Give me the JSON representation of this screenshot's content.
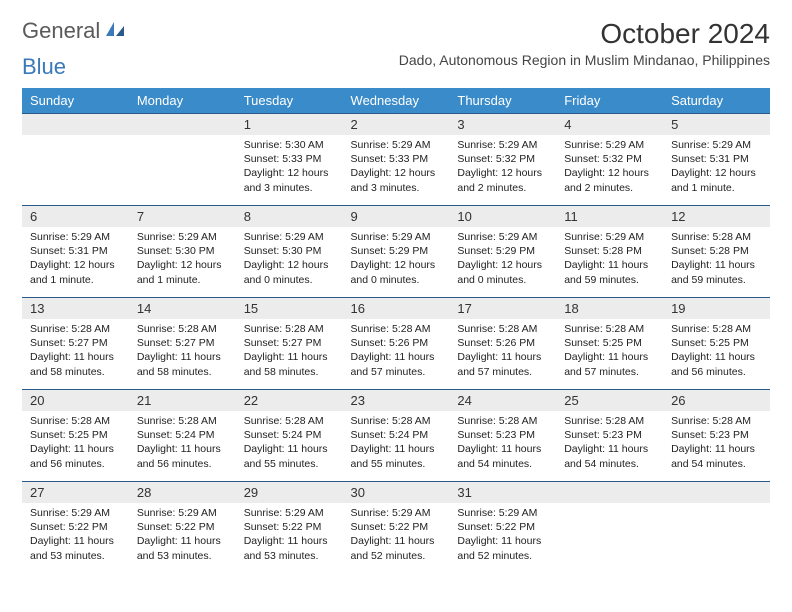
{
  "logo": {
    "text1": "General",
    "text2": "Blue"
  },
  "title": "October 2024",
  "subtitle": "Dado, Autonomous Region in Muslim Mindanao, Philippines",
  "colors": {
    "header_bg": "#3a8bc9",
    "header_text": "#ffffff",
    "daynum_bg": "#ececec",
    "border": "#2a5a8a",
    "logo_gray": "#5a5a5a",
    "logo_blue": "#3a7ab8",
    "text": "#222222",
    "background": "#ffffff"
  },
  "day_headers": [
    "Sunday",
    "Monday",
    "Tuesday",
    "Wednesday",
    "Thursday",
    "Friday",
    "Saturday"
  ],
  "weeks": [
    [
      {
        "num": "",
        "lines": []
      },
      {
        "num": "",
        "lines": []
      },
      {
        "num": "1",
        "lines": [
          "Sunrise: 5:30 AM",
          "Sunset: 5:33 PM",
          "Daylight: 12 hours and 3 minutes."
        ]
      },
      {
        "num": "2",
        "lines": [
          "Sunrise: 5:29 AM",
          "Sunset: 5:33 PM",
          "Daylight: 12 hours and 3 minutes."
        ]
      },
      {
        "num": "3",
        "lines": [
          "Sunrise: 5:29 AM",
          "Sunset: 5:32 PM",
          "Daylight: 12 hours and 2 minutes."
        ]
      },
      {
        "num": "4",
        "lines": [
          "Sunrise: 5:29 AM",
          "Sunset: 5:32 PM",
          "Daylight: 12 hours and 2 minutes."
        ]
      },
      {
        "num": "5",
        "lines": [
          "Sunrise: 5:29 AM",
          "Sunset: 5:31 PM",
          "Daylight: 12 hours and 1 minute."
        ]
      }
    ],
    [
      {
        "num": "6",
        "lines": [
          "Sunrise: 5:29 AM",
          "Sunset: 5:31 PM",
          "Daylight: 12 hours and 1 minute."
        ]
      },
      {
        "num": "7",
        "lines": [
          "Sunrise: 5:29 AM",
          "Sunset: 5:30 PM",
          "Daylight: 12 hours and 1 minute."
        ]
      },
      {
        "num": "8",
        "lines": [
          "Sunrise: 5:29 AM",
          "Sunset: 5:30 PM",
          "Daylight: 12 hours and 0 minutes."
        ]
      },
      {
        "num": "9",
        "lines": [
          "Sunrise: 5:29 AM",
          "Sunset: 5:29 PM",
          "Daylight: 12 hours and 0 minutes."
        ]
      },
      {
        "num": "10",
        "lines": [
          "Sunrise: 5:29 AM",
          "Sunset: 5:29 PM",
          "Daylight: 12 hours and 0 minutes."
        ]
      },
      {
        "num": "11",
        "lines": [
          "Sunrise: 5:29 AM",
          "Sunset: 5:28 PM",
          "Daylight: 11 hours and 59 minutes."
        ]
      },
      {
        "num": "12",
        "lines": [
          "Sunrise: 5:28 AM",
          "Sunset: 5:28 PM",
          "Daylight: 11 hours and 59 minutes."
        ]
      }
    ],
    [
      {
        "num": "13",
        "lines": [
          "Sunrise: 5:28 AM",
          "Sunset: 5:27 PM",
          "Daylight: 11 hours and 58 minutes."
        ]
      },
      {
        "num": "14",
        "lines": [
          "Sunrise: 5:28 AM",
          "Sunset: 5:27 PM",
          "Daylight: 11 hours and 58 minutes."
        ]
      },
      {
        "num": "15",
        "lines": [
          "Sunrise: 5:28 AM",
          "Sunset: 5:27 PM",
          "Daylight: 11 hours and 58 minutes."
        ]
      },
      {
        "num": "16",
        "lines": [
          "Sunrise: 5:28 AM",
          "Sunset: 5:26 PM",
          "Daylight: 11 hours and 57 minutes."
        ]
      },
      {
        "num": "17",
        "lines": [
          "Sunrise: 5:28 AM",
          "Sunset: 5:26 PM",
          "Daylight: 11 hours and 57 minutes."
        ]
      },
      {
        "num": "18",
        "lines": [
          "Sunrise: 5:28 AM",
          "Sunset: 5:25 PM",
          "Daylight: 11 hours and 57 minutes."
        ]
      },
      {
        "num": "19",
        "lines": [
          "Sunrise: 5:28 AM",
          "Sunset: 5:25 PM",
          "Daylight: 11 hours and 56 minutes."
        ]
      }
    ],
    [
      {
        "num": "20",
        "lines": [
          "Sunrise: 5:28 AM",
          "Sunset: 5:25 PM",
          "Daylight: 11 hours and 56 minutes."
        ]
      },
      {
        "num": "21",
        "lines": [
          "Sunrise: 5:28 AM",
          "Sunset: 5:24 PM",
          "Daylight: 11 hours and 56 minutes."
        ]
      },
      {
        "num": "22",
        "lines": [
          "Sunrise: 5:28 AM",
          "Sunset: 5:24 PM",
          "Daylight: 11 hours and 55 minutes."
        ]
      },
      {
        "num": "23",
        "lines": [
          "Sunrise: 5:28 AM",
          "Sunset: 5:24 PM",
          "Daylight: 11 hours and 55 minutes."
        ]
      },
      {
        "num": "24",
        "lines": [
          "Sunrise: 5:28 AM",
          "Sunset: 5:23 PM",
          "Daylight: 11 hours and 54 minutes."
        ]
      },
      {
        "num": "25",
        "lines": [
          "Sunrise: 5:28 AM",
          "Sunset: 5:23 PM",
          "Daylight: 11 hours and 54 minutes."
        ]
      },
      {
        "num": "26",
        "lines": [
          "Sunrise: 5:28 AM",
          "Sunset: 5:23 PM",
          "Daylight: 11 hours and 54 minutes."
        ]
      }
    ],
    [
      {
        "num": "27",
        "lines": [
          "Sunrise: 5:29 AM",
          "Sunset: 5:22 PM",
          "Daylight: 11 hours and 53 minutes."
        ]
      },
      {
        "num": "28",
        "lines": [
          "Sunrise: 5:29 AM",
          "Sunset: 5:22 PM",
          "Daylight: 11 hours and 53 minutes."
        ]
      },
      {
        "num": "29",
        "lines": [
          "Sunrise: 5:29 AM",
          "Sunset: 5:22 PM",
          "Daylight: 11 hours and 53 minutes."
        ]
      },
      {
        "num": "30",
        "lines": [
          "Sunrise: 5:29 AM",
          "Sunset: 5:22 PM",
          "Daylight: 11 hours and 52 minutes."
        ]
      },
      {
        "num": "31",
        "lines": [
          "Sunrise: 5:29 AM",
          "Sunset: 5:22 PM",
          "Daylight: 11 hours and 52 minutes."
        ]
      },
      {
        "num": "",
        "lines": []
      },
      {
        "num": "",
        "lines": []
      }
    ]
  ]
}
